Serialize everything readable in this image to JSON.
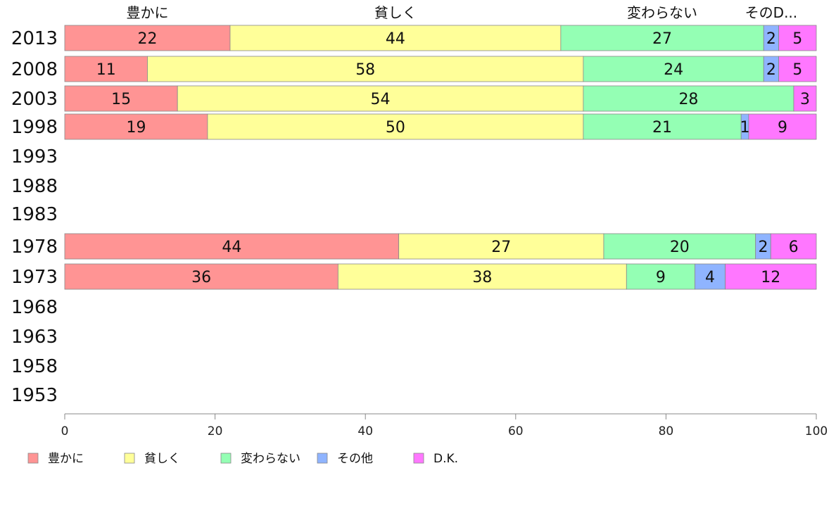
{
  "chart_data": {
    "type": "bar",
    "orientation": "horizontal",
    "stacked": true,
    "categories": [
      "2013",
      "2008",
      "2003",
      "1998",
      "1993",
      "1988",
      "1983",
      "1978",
      "1973",
      "1968",
      "1963",
      "1958",
      "1953"
    ],
    "series": [
      {
        "name": "豊かに",
        "header": "豊かに",
        "color": "#ff9494",
        "values": [
          22,
          11,
          15,
          19,
          null,
          null,
          null,
          44,
          36,
          null,
          null,
          null,
          null
        ]
      },
      {
        "name": "貧しく",
        "header": "貧しく",
        "color": "#ffff99",
        "values": [
          44,
          58,
          54,
          50,
          null,
          null,
          null,
          27,
          38,
          null,
          null,
          null,
          null
        ]
      },
      {
        "name": "変わらない",
        "header": "変わらない",
        "color": "#94ffb4",
        "values": [
          27,
          24,
          28,
          21,
          null,
          null,
          null,
          20,
          9,
          null,
          null,
          null,
          null
        ]
      },
      {
        "name": "その他",
        "header": "そのD...",
        "color": "#8fb4ff",
        "values": [
          2,
          2,
          0,
          1,
          null,
          null,
          null,
          2,
          4,
          null,
          null,
          null,
          null
        ]
      },
      {
        "name": "D.K.",
        "header": "",
        "color": "#ff77ff",
        "values": [
          5,
          5,
          3,
          9,
          null,
          null,
          null,
          6,
          12,
          null,
          null,
          null,
          null
        ]
      }
    ],
    "xlim": [
      0,
      100
    ],
    "xticks": [
      0,
      20,
      40,
      60,
      80,
      100
    ],
    "legend_position": "bottom-left",
    "grid": false
  }
}
